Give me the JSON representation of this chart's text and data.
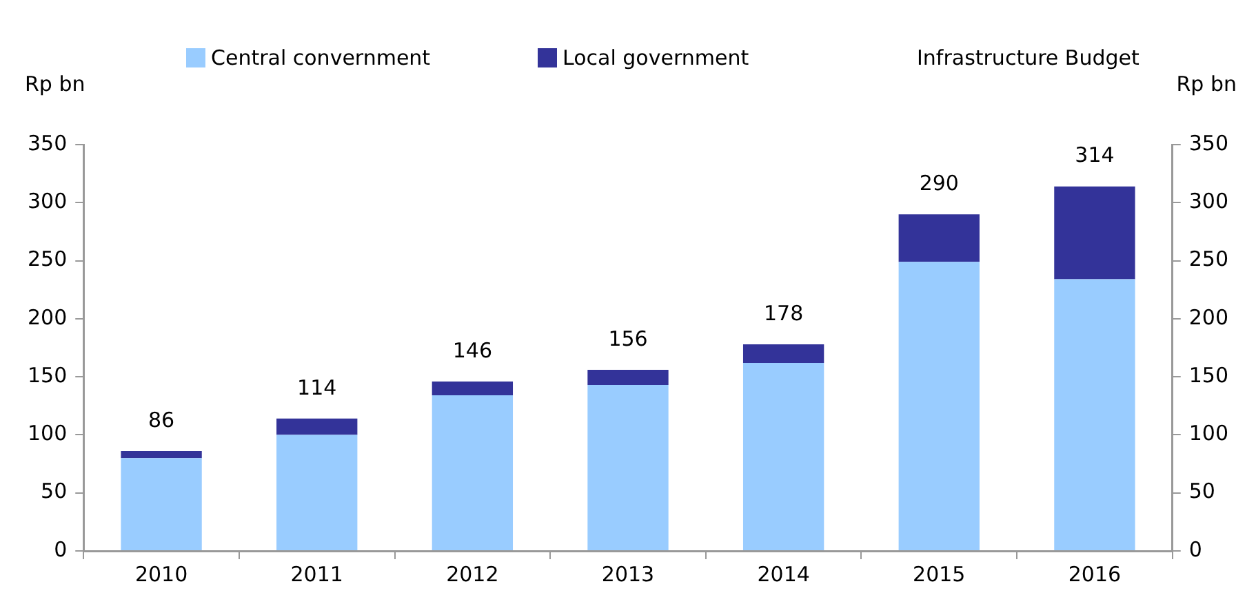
{
  "chart_data": {
    "type": "bar",
    "stacked": true,
    "categories": [
      "2010",
      "2011",
      "2012",
      "2013",
      "2014",
      "2015",
      "2016"
    ],
    "series": [
      {
        "name": "Central convernment",
        "color": "#99ccff",
        "values": [
          80,
          100,
          134,
          143,
          162,
          249,
          234
        ]
      },
      {
        "name": "Local government",
        "color": "#333399",
        "values": [
          6,
          14,
          12,
          13,
          16,
          41,
          80
        ]
      }
    ],
    "totals": [
      "86",
      "114",
      "146",
      "156",
      "178",
      "290",
      "314"
    ],
    "legend": "top",
    "legend_title": "Infrastructure Budget",
    "ylabel": "Rp bn",
    "y2label": "Rp bn",
    "ylim": [
      0,
      350
    ],
    "yticks": [
      0,
      50,
      100,
      150,
      200,
      250,
      300,
      350
    ],
    "y2lim": [
      0,
      350
    ],
    "y2ticks": [
      0,
      50,
      100,
      150,
      200,
      250,
      300,
      350
    ],
    "grid": false
  }
}
